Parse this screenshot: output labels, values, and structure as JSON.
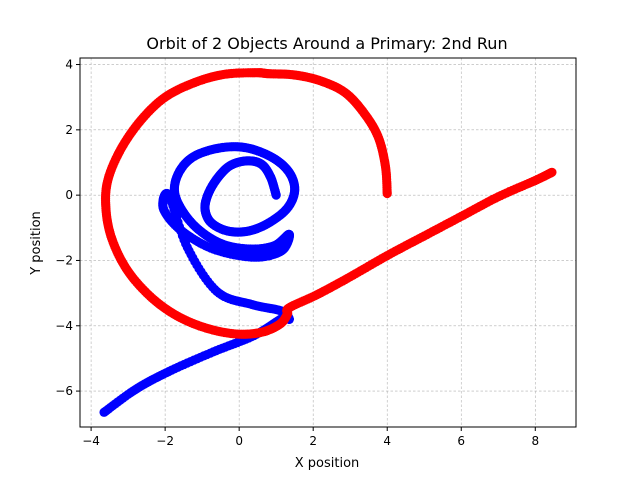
{
  "chart_data": {
    "type": "scatter",
    "title": "Orbit of 2 Objects Around a Primary: 2nd Run",
    "xlabel": "X position",
    "ylabel": "Y position",
    "xlim": [
      -4.3,
      9.1
    ],
    "ylim": [
      -7.1,
      4.2
    ],
    "xticks": [
      -4,
      -2,
      0,
      2,
      4,
      6,
      8
    ],
    "yticks": [
      -6,
      -4,
      -2,
      0,
      2,
      4
    ],
    "grid": true,
    "colors": {
      "blue": "#0000ff",
      "red": "#ff0000",
      "grid": "#b0b0b0"
    },
    "series": [
      {
        "color": "#0000ff",
        "x": [
          1.0,
          0.85,
          0.6,
          0.2,
          -0.25,
          -0.6,
          -0.85,
          -0.92,
          -0.75,
          -0.3,
          0.25,
          0.8,
          1.3,
          1.5,
          1.35,
          0.9,
          0.2,
          -0.5,
          -1.2,
          -1.6,
          -1.75,
          -1.55,
          -1.1,
          -0.45,
          0.3,
          0.95,
          1.35,
          1.15,
          0.4,
          -0.7,
          -1.6,
          -2.05,
          -1.9,
          -1.4,
          -0.6,
          0.35,
          1.15,
          1.35,
          1.2,
          0.4,
          -0.7,
          -1.9,
          -2.8,
          -3.65
        ],
        "y": [
          0.0,
          0.55,
          0.95,
          1.05,
          0.9,
          0.5,
          0.0,
          -0.45,
          -0.85,
          -1.1,
          -1.1,
          -0.85,
          -0.4,
          0.15,
          0.7,
          1.15,
          1.45,
          1.45,
          1.2,
          0.75,
          0.15,
          -0.45,
          -1.05,
          -1.5,
          -1.65,
          -1.55,
          -1.2,
          -1.7,
          -1.9,
          -1.65,
          -1.05,
          -0.4,
          0.0,
          -1.6,
          -2.95,
          -3.35,
          -3.55,
          -3.8,
          -3.75,
          -4.3,
          -4.8,
          -5.4,
          -5.95,
          -6.65
        ]
      },
      {
        "color": "#ff0000",
        "x": [
          4.0,
          3.95,
          3.75,
          3.35,
          2.85,
          2.2,
          1.5,
          0.8,
          0.45,
          -0.4,
          -1.2,
          -2.0,
          -2.65,
          -3.2,
          -3.55,
          -3.6,
          -3.45,
          -3.05,
          -2.45,
          -1.75,
          -0.95,
          -0.1,
          0.6,
          1.1,
          1.3,
          1.35,
          2.1,
          3.0,
          4.0,
          5.0,
          6.0,
          7.0,
          8.0,
          8.45
        ],
        "y": [
          0.05,
          0.9,
          1.8,
          2.55,
          3.15,
          3.5,
          3.68,
          3.72,
          3.75,
          3.7,
          3.45,
          3.0,
          2.3,
          1.4,
          0.45,
          -0.4,
          -1.3,
          -2.25,
          -3.05,
          -3.65,
          -4.05,
          -4.25,
          -4.2,
          -3.95,
          -3.65,
          -3.45,
          -3.05,
          -2.5,
          -1.85,
          -1.25,
          -0.65,
          -0.05,
          0.45,
          0.7
        ]
      }
    ]
  }
}
